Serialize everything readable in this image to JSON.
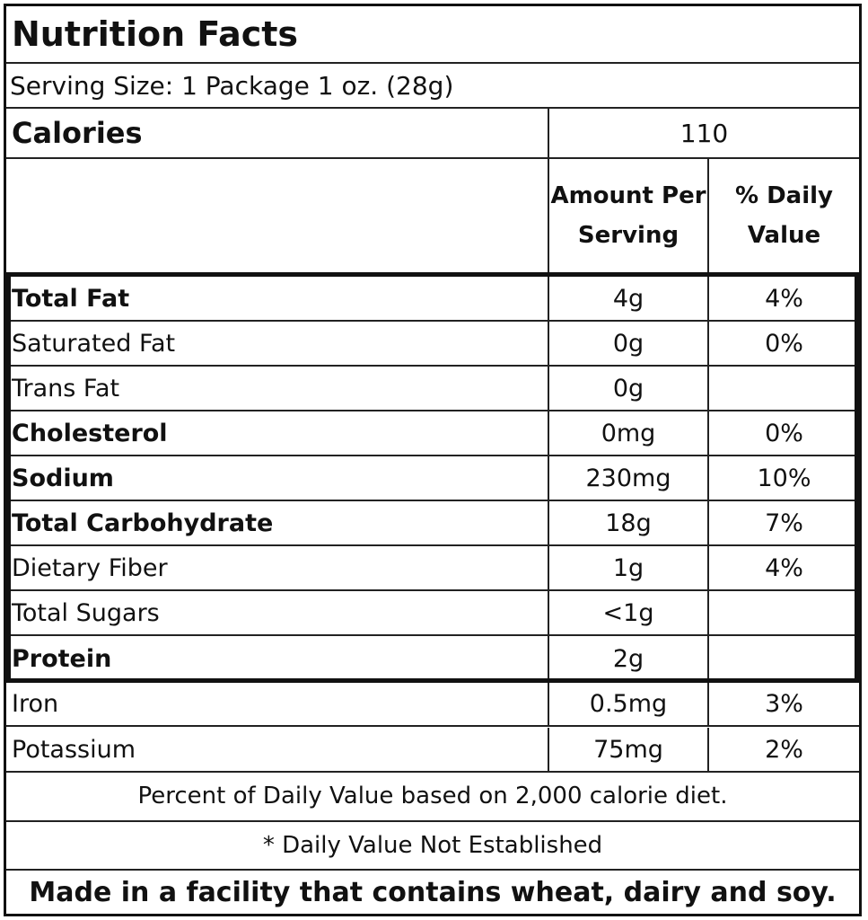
{
  "title": "Nutrition Facts",
  "serving_size": "Serving Size: 1 Package 1 oz. (28g)",
  "calories": {
    "label": "Calories",
    "value": "110"
  },
  "headers": {
    "amount": "Amount Per Serving",
    "daily_value": "% Daily Value"
  },
  "nutrients": [
    {
      "name": "Total Fat",
      "amount": "4g",
      "dv": "4%",
      "bold": true
    },
    {
      "name": "Saturated Fat",
      "amount": "0g",
      "dv": "0%",
      "bold": false
    },
    {
      "name": "Trans Fat",
      "amount": "0g",
      "dv": "",
      "bold": false
    },
    {
      "name": "Cholesterol",
      "amount": "0mg",
      "dv": "0%",
      "bold": true
    },
    {
      "name": "Sodium",
      "amount": "230mg",
      "dv": "10%",
      "bold": true
    },
    {
      "name": "Total Carbohydrate",
      "amount": "18g",
      "dv": "7%",
      "bold": true
    },
    {
      "name": "Dietary Fiber",
      "amount": "1g",
      "dv": "4%",
      "bold": false
    },
    {
      "name": "Total Sugars",
      "amount": "<1g",
      "dv": "",
      "bold": false
    },
    {
      "name": "Protein",
      "amount": "2g",
      "dv": "",
      "bold": true
    }
  ],
  "minerals": [
    {
      "name": "Iron",
      "amount": "0.5mg",
      "dv": "3%"
    },
    {
      "name": "Potassium",
      "amount": "75mg",
      "dv": "2%"
    }
  ],
  "footnote_dv": "Percent of Daily Value based on 2,000 calorie diet.",
  "footnote_ne": "* Daily Value Not Established",
  "allergen": "Made in a facility that contains wheat, dairy and soy."
}
